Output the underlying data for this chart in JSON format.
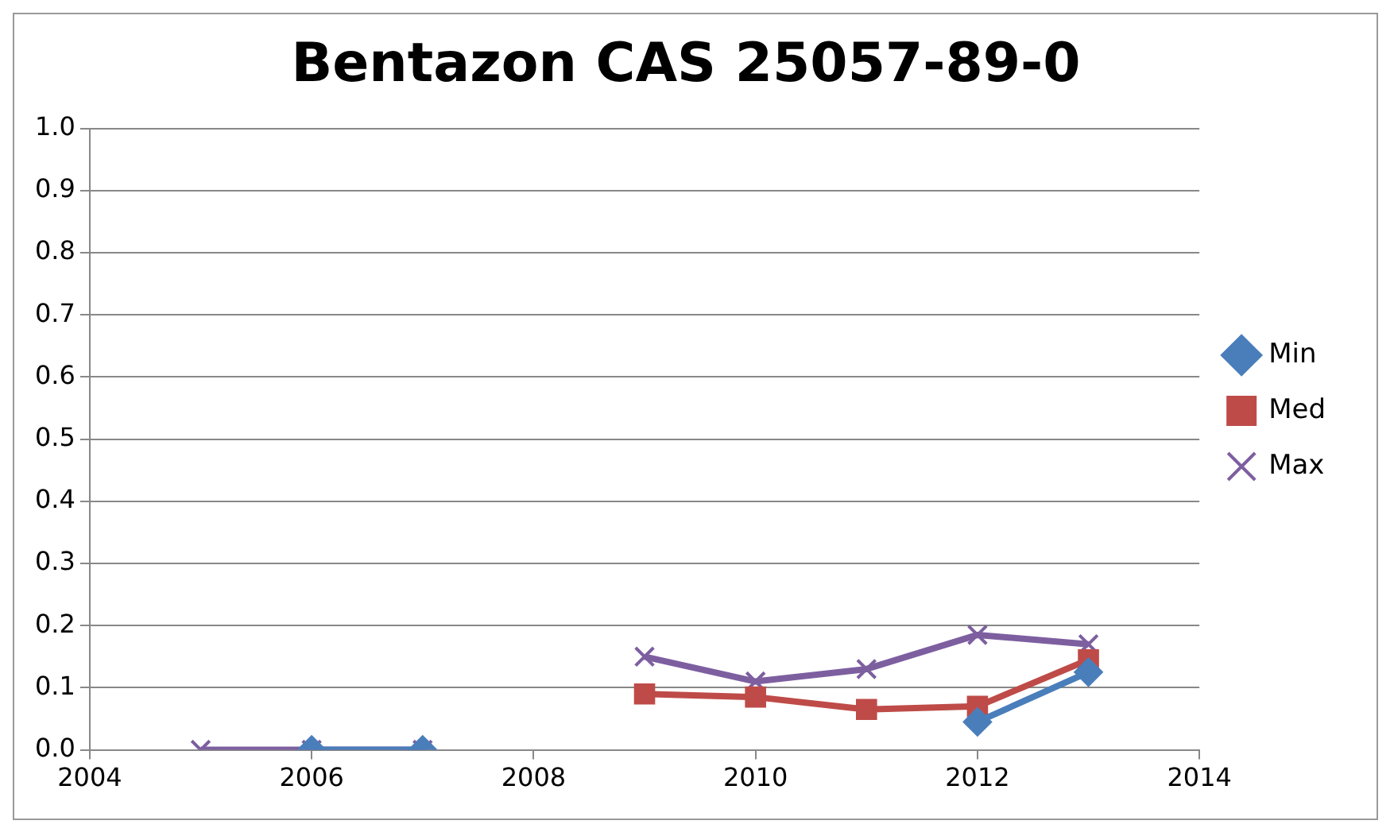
{
  "chart_data": {
    "type": "line",
    "title": "Bentazon CAS 25057-89-0",
    "xlim": [
      2004,
      2014
    ],
    "xticks": [
      2004,
      2006,
      2008,
      2010,
      2012,
      2014
    ],
    "ylim": [
      0,
      1
    ],
    "yticks": [
      {
        "value": 0,
        "label": "0.0"
      },
      {
        "value": 0.1,
        "label": "0.1"
      },
      {
        "value": 0.2,
        "label": "0.2"
      },
      {
        "value": 0.3,
        "label": "0.3"
      },
      {
        "value": 0.4,
        "label": "0.4"
      },
      {
        "value": 0.5,
        "label": "0.5"
      },
      {
        "value": 0.6,
        "label": "0.6"
      },
      {
        "value": 0.7,
        "label": "0.7"
      },
      {
        "value": 0.8,
        "label": "0.8"
      },
      {
        "value": 0.9,
        "label": "0.9"
      },
      {
        "value": 1,
        "label": "1.0"
      }
    ],
    "grid": "y",
    "legend": "right",
    "line_style": "solid",
    "series": [
      {
        "name": "Min",
        "color": "#4a7ebb",
        "marker": "diamond",
        "x": [
          2006,
          2007,
          2008,
          2009,
          2010,
          2011,
          2012,
          2013
        ],
        "values": [
          0,
          0,
          null,
          null,
          null,
          null,
          0.045,
          0.125
        ]
      },
      {
        "name": "Med",
        "color": "#be4b48",
        "marker": "square",
        "x": [
          2009,
          2010,
          2011,
          2012,
          2013
        ],
        "values": [
          0.09,
          0.085,
          0.065,
          0.07,
          0.145
        ]
      },
      {
        "name": "Max",
        "color": "#7d5fa0",
        "marker": "cross",
        "x": [
          2005,
          2006,
          2007,
          2008,
          2009,
          2010,
          2011,
          2012,
          2013
        ],
        "values": [
          0,
          0,
          0,
          null,
          0.15,
          0.11,
          0.13,
          0.185,
          0.17
        ]
      }
    ]
  }
}
